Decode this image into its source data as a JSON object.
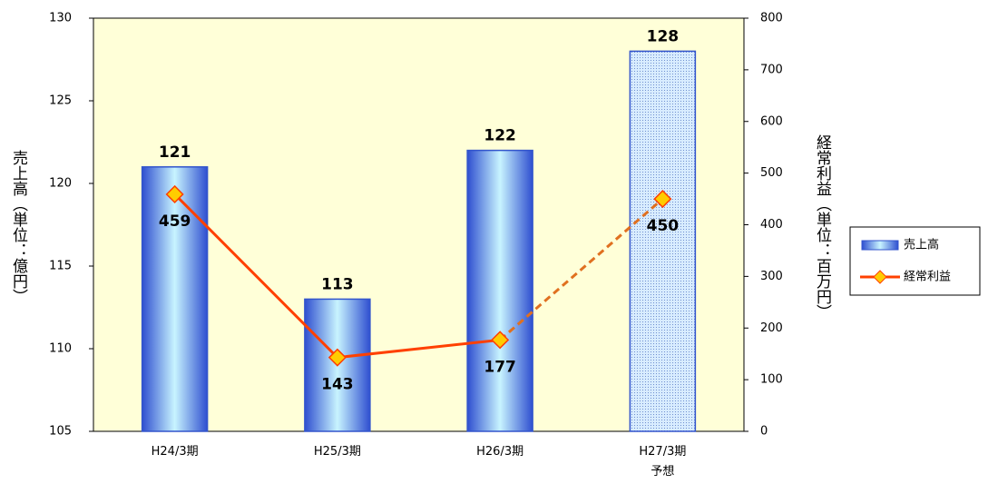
{
  "chart_data": {
    "type": "bar_line",
    "categories": [
      "H24/3期",
      "H25/3期",
      "H26/3期",
      "H27/3期\n予想"
    ],
    "forecast_index": 3,
    "y_label": "売上高（単位：億円）",
    "y2_label": "経常利益（単位：百万円）",
    "ylim": [
      105,
      130
    ],
    "yticks": [
      105,
      110,
      115,
      120,
      125,
      130
    ],
    "y2lim": [
      0,
      800
    ],
    "y2ticks": [
      0,
      100,
      200,
      300,
      400,
      500,
      600,
      700,
      800
    ],
    "series": [
      {
        "name": "売上高",
        "type": "bar",
        "color": "#3355cc",
        "label_color": "#1a1aa8",
        "values": [
          121,
          113,
          122,
          128
        ]
      },
      {
        "name": "経常利益",
        "type": "line",
        "axis": "y2",
        "color": "#ff4000",
        "forecast_color": "#e07020",
        "marker_color": "#ffcc00",
        "label_color": "#f04010",
        "values": [
          459,
          143,
          177,
          450
        ]
      }
    ],
    "legend": "right"
  }
}
